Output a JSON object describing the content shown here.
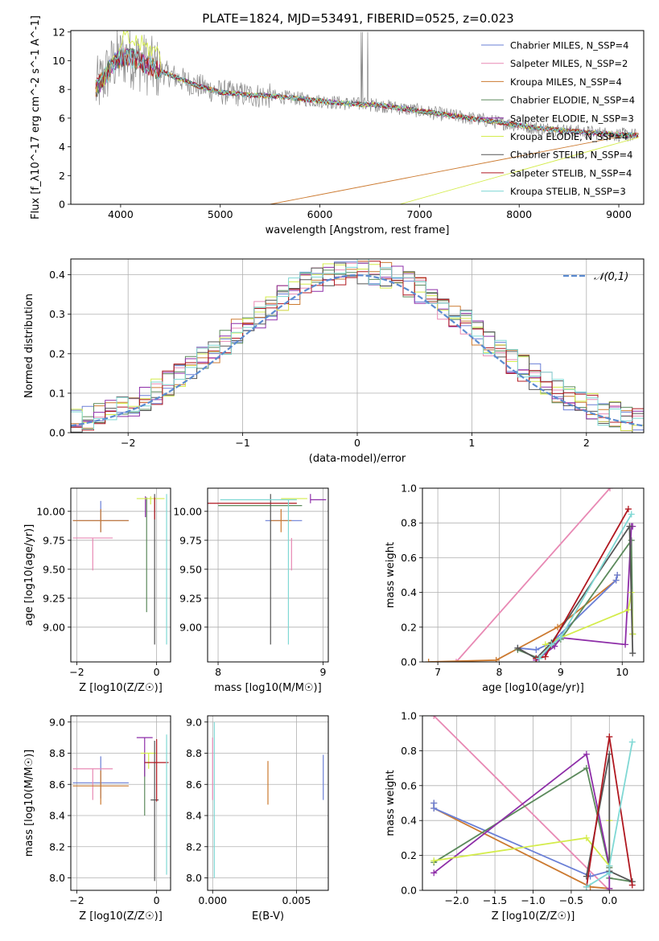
{
  "figure_title": "PLATE=1824, MJD=53491, FIBERID=0525, z=0.023",
  "colors": {
    "chabrier_miles": "#6a7fd6",
    "salpeter_miles": "#e889b4",
    "kroupa_miles": "#cc7a30",
    "chabrier_elodie": "#5c8a5c",
    "salpeter_elodie": "#8e2ea8",
    "kroupa_elodie": "#d4ec4c",
    "chabrier_stelib": "#555555",
    "salpeter_stelib": "#b01820",
    "kroupa_stelib": "#7fd8d4"
  },
  "chart_data": [
    {
      "id": "spectrum",
      "type": "line",
      "title": "PLATE=1824, MJD=53491, FIBERID=0525, z=0.023",
      "xlabel": "wavelength [Angstrom, rest frame]",
      "ylabel": "Flux [f_λ10^-17 erg cm^-2 s^-1 A^-1]",
      "xlim": [
        3500,
        9250
      ],
      "ylim": [
        0,
        12.1
      ],
      "xticks": [
        4000,
        5000,
        6000,
        7000,
        8000,
        9000
      ],
      "yticks": [
        0,
        2,
        4,
        6,
        8,
        10,
        12
      ],
      "legend_position": "top-right",
      "grid": false,
      "continuum": {
        "x": [
          3750,
          3850,
          3950,
          4050,
          4150,
          4300,
          4500,
          4750,
          5000,
          5300,
          5600,
          6000,
          6300,
          6600,
          7000,
          7300,
          7600,
          7900,
          8200,
          8500,
          8800,
          9000,
          9200
        ],
        "y": [
          8.0,
          9.0,
          10.0,
          10.3,
          10.1,
          9.6,
          9.0,
          8.3,
          7.8,
          7.6,
          7.5,
          7.2,
          7.0,
          6.9,
          6.5,
          6.2,
          5.9,
          5.6,
          5.3,
          5.1,
          4.95,
          4.85,
          4.8
        ]
      },
      "legend": [
        "Chabrier MILES, N_SSP=4",
        "Salpeter MILES, N_SSP=2",
        "Kroupa MILES, N_SSP=4",
        "Chabrier ELODIE, N_SSP=4",
        "Salpeter ELODIE, N_SSP=3",
        "Kroupa ELODIE, N_SSP=4",
        "Chabrier STELIB, N_SSP=4",
        "Salpeter STELIB, N_SSP=4",
        "Kroupa STELIB, N_SSP=3"
      ]
    },
    {
      "id": "residuals",
      "type": "line",
      "xlabel": "(data-model)/error",
      "ylabel": "Normed distribution",
      "xlim": [
        -2.5,
        2.5
      ],
      "ylim": [
        0,
        0.44
      ],
      "xticks": [
        -2,
        -1,
        0,
        1,
        2
      ],
      "yticks": [
        0.0,
        0.1,
        0.2,
        0.3,
        0.4
      ],
      "grid": true,
      "legend_position": "top-right",
      "reference_label": "𝒩(0,1)",
      "bin_width": 0.1
    },
    {
      "id": "age_vs_Z",
      "type": "scatter",
      "xlabel": "Z [log10(Z/Z☉)]",
      "ylabel": "age [log10(age/yr)]",
      "xlim": [
        -2.15,
        0.35
      ],
      "ylim": [
        8.7,
        10.2
      ],
      "xticks": [
        -2,
        0
      ],
      "yticks": [
        9.0,
        9.25,
        9.5,
        9.75,
        10.0
      ],
      "grid": true,
      "points": [
        {
          "s": "chabrier_miles",
          "x": -1.4,
          "xerr": [
            0.7,
            0.7
          ],
          "y": 9.92,
          "yerr": [
            0.1,
            0.17
          ]
        },
        {
          "s": "salpeter_miles",
          "x": -1.6,
          "xerr": [
            0.5,
            0.5
          ],
          "y": 9.77,
          "yerr": [
            0.28,
            0.0
          ]
        },
        {
          "s": "kroupa_miles",
          "x": -1.4,
          "xerr": [
            0.7,
            0.7
          ],
          "y": 9.92,
          "yerr": [
            0.1,
            0.1
          ]
        },
        {
          "s": "chabrier_elodie",
          "x": -0.25,
          "xerr": [
            0.0,
            0.0
          ],
          "y": 9.95,
          "yerr": [
            0.82,
            0.17
          ]
        },
        {
          "s": "salpeter_elodie",
          "x": -0.28,
          "xerr": [
            0.0,
            0.0
          ],
          "y": 10.05,
          "yerr": [
            0.1,
            0.08
          ]
        },
        {
          "s": "kroupa_elodie",
          "x": -0.15,
          "xerr": [
            0.35,
            0.35
          ],
          "y": 10.11,
          "yerr": [
            0.05,
            0.02
          ]
        },
        {
          "s": "chabrier_stelib",
          "x": -0.05,
          "xerr": [
            0.0,
            0.0
          ],
          "y": 10.1,
          "yerr": [
            1.25,
            0.05
          ]
        },
        {
          "s": "salpeter_stelib",
          "x": -0.05,
          "xerr": [
            0.0,
            0.0
          ],
          "y": 10.05,
          "yerr": [
            0.12,
            0.07
          ]
        },
        {
          "s": "kroupa_stelib",
          "x": 0.25,
          "xerr": [
            0.0,
            0.0
          ],
          "y": 10.1,
          "yerr": [
            1.25,
            0.05
          ]
        }
      ]
    },
    {
      "id": "age_vs_mass",
      "type": "scatter",
      "xlabel": "mass [log10(M/M☉)]",
      "ylabel": "",
      "xlim": [
        7.9,
        9.05
      ],
      "ylim": [
        8.7,
        10.2
      ],
      "xticks": [
        8,
        9
      ],
      "yticks": [
        9.0,
        9.25,
        9.5,
        9.75,
        10.0
      ],
      "grid": true,
      "points": [
        {
          "s": "chabrier_miles",
          "x": 8.6,
          "xerr": [
            0.15,
            0.2
          ],
          "y": 9.92,
          "yerr": [
            0.0,
            0.0
          ]
        },
        {
          "s": "salpeter_miles",
          "x": 8.7,
          "xerr": [
            0.0,
            0.0
          ],
          "y": 9.77,
          "yerr": [
            0.28,
            0.0
          ]
        },
        {
          "s": "kroupa_miles",
          "x": 8.6,
          "xerr": [
            0.1,
            0.1
          ],
          "y": 9.92,
          "yerr": [
            0.1,
            0.1
          ]
        },
        {
          "s": "chabrier_elodie",
          "x": 8.6,
          "xerr": [
            0.6,
            0.2
          ],
          "y": 10.05,
          "yerr": [
            0.0,
            0.0
          ]
        },
        {
          "s": "salpeter_elodie",
          "x": 8.88,
          "xerr": [
            0.0,
            0.15
          ],
          "y": 10.1,
          "yerr": [
            0.03,
            0.05
          ]
        },
        {
          "s": "kroupa_elodie",
          "x": 8.75,
          "xerr": [
            0.15,
            0.1
          ],
          "y": 10.11,
          "yerr": [
            0.0,
            0.0
          ]
        },
        {
          "s": "chabrier_stelib",
          "x": 8.5,
          "xerr": [
            0.0,
            0.0
          ],
          "y": 10.1,
          "yerr": [
            1.25,
            0.05
          ]
        },
        {
          "s": "salpeter_stelib",
          "x": 8.6,
          "xerr": [
            0.7,
            0.15
          ],
          "y": 10.07,
          "yerr": [
            0.0,
            0.0
          ]
        },
        {
          "s": "kroupa_stelib",
          "x": 8.67,
          "xerr": [
            0.65,
            0.08
          ],
          "y": 10.1,
          "yerr": [
            1.25,
            0.0
          ]
        }
      ]
    },
    {
      "id": "weight_vs_age",
      "type": "line",
      "xlabel": "age [log10(age/yr)]",
      "ylabel": "mass weight",
      "xlim": [
        6.75,
        10.35
      ],
      "ylim": [
        0,
        1.0
      ],
      "xticks": [
        7,
        8,
        9,
        10
      ],
      "yticks": [
        0.0,
        0.2,
        0.4,
        0.6,
        0.8,
        1.0
      ],
      "grid": true,
      "series": [
        {
          "s": "salpeter_miles",
          "x": [
            7.3,
            9.8
          ],
          "y": [
            0.0,
            1.0
          ]
        },
        {
          "s": "kroupa_miles",
          "x": [
            6.85,
            7.95,
            8.95,
            9.9,
            9.92
          ],
          "y": [
            0.0,
            0.01,
            0.2,
            0.47,
            0.5
          ]
        },
        {
          "s": "chabrier_miles",
          "x": [
            8.3,
            8.6,
            8.85,
            9.9,
            9.92
          ],
          "y": [
            0.08,
            0.07,
            0.11,
            0.47,
            0.5
          ]
        },
        {
          "s": "chabrier_elodie",
          "x": [
            8.3,
            8.65,
            9.0,
            10.15,
            10.17
          ],
          "y": [
            0.07,
            0.02,
            0.13,
            0.7,
            0.16
          ]
        },
        {
          "s": "salpeter_elodie",
          "x": [
            8.6,
            8.9,
            9.0,
            10.05,
            10.15,
            10.17
          ],
          "y": [
            0.01,
            0.09,
            0.14,
            0.1,
            0.78,
            0.78
          ]
        },
        {
          "s": "kroupa_elodie",
          "x": [
            8.75,
            9.0,
            10.1,
            10.15,
            10.17
          ],
          "y": [
            0.1,
            0.14,
            0.3,
            0.4,
            0.16
          ]
        },
        {
          "s": "chabrier_stelib",
          "x": [
            8.3,
            8.6,
            8.85,
            10.12,
            10.17
          ],
          "y": [
            0.08,
            0.02,
            0.11,
            0.78,
            0.05
          ]
        },
        {
          "s": "salpeter_stelib",
          "x": [
            8.6,
            8.75,
            8.85,
            10.1
          ],
          "y": [
            0.02,
            0.03,
            0.1,
            0.88
          ]
        },
        {
          "s": "kroupa_stelib",
          "x": [
            8.65,
            8.85,
            9.0,
            10.15
          ],
          "y": [
            0.02,
            0.1,
            0.14,
            0.85
          ]
        }
      ]
    },
    {
      "id": "mass_vs_Z",
      "type": "scatter",
      "xlabel": "Z [log10(Z/Z☉)]",
      "ylabel": "mass [log10(M/M☉)]",
      "xlim": [
        -2.15,
        0.35
      ],
      "ylim": [
        7.92,
        9.04
      ],
      "xticks": [
        -2,
        0
      ],
      "yticks": [
        8.0,
        8.2,
        8.4,
        8.6,
        8.8,
        9.0
      ],
      "grid": true,
      "points": [
        {
          "s": "chabrier_miles",
          "x": -1.4,
          "xerr": [
            0.7,
            0.7
          ],
          "y": 8.61,
          "yerr": [
            0.1,
            0.17
          ]
        },
        {
          "s": "salpeter_miles",
          "x": -1.6,
          "xerr": [
            0.5,
            0.5
          ],
          "y": 8.7,
          "yerr": [
            0.2,
            0.0
          ]
        },
        {
          "s": "kroupa_miles",
          "x": -1.4,
          "xerr": [
            0.7,
            0.7
          ],
          "y": 8.59,
          "yerr": [
            0.12,
            0.1
          ]
        },
        {
          "s": "chabrier_elodie",
          "x": -0.3,
          "xerr": [
            0.0,
            0.0
          ],
          "y": 8.75,
          "yerr": [
            0.35,
            0.05
          ]
        },
        {
          "s": "salpeter_elodie",
          "x": -0.3,
          "xerr": [
            0.2,
            0.2
          ],
          "y": 8.9,
          "yerr": [
            0.25,
            0.0
          ]
        },
        {
          "s": "kroupa_elodie",
          "x": -0.2,
          "xerr": [
            0.2,
            0.2
          ],
          "y": 8.8,
          "yerr": [
            0.1,
            0.0
          ]
        },
        {
          "s": "chabrier_stelib",
          "x": -0.05,
          "xerr": [
            0.1,
            0.1
          ],
          "y": 8.5,
          "yerr": [
            0.52,
            0.38
          ]
        },
        {
          "s": "salpeter_stelib",
          "x": 0.0,
          "xerr": [
            0.3,
            0.3
          ],
          "y": 8.74,
          "yerr": [
            0.25,
            0.15
          ]
        },
        {
          "s": "kroupa_stelib",
          "x": 0.25,
          "xerr": [
            0.0,
            0.0
          ],
          "y": 8.67,
          "yerr": [
            0.65,
            0.25
          ]
        }
      ]
    },
    {
      "id": "mass_vs_ebv",
      "type": "scatter",
      "xlabel": "E(B-V)",
      "ylabel": "",
      "xlim": [
        -0.0003,
        0.0069
      ],
      "ylim": [
        7.92,
        9.04
      ],
      "xticks": [
        0.0,
        0.005
      ],
      "xtick_labels": [
        "0.000",
        "0.005"
      ],
      "yticks": [
        8.0,
        8.2,
        8.4,
        8.6,
        8.8,
        9.0
      ],
      "grid": true,
      "points": [
        {
          "s": "chabrier_miles",
          "x": 0.0066,
          "xerr": [
            0,
            0
          ],
          "y": 8.64,
          "yerr": [
            0.14,
            0.15
          ]
        },
        {
          "s": "kroupa_miles",
          "x": 0.0033,
          "xerr": [
            0,
            0
          ],
          "y": 8.61,
          "yerr": [
            0.14,
            0.14
          ]
        },
        {
          "s": "salpeter_miles",
          "x": 0.0,
          "xerr": [
            0,
            0
          ],
          "y": 8.7,
          "yerr": [
            0.2,
            0.2
          ]
        },
        {
          "s": "kroupa_stelib",
          "x": 0.0001,
          "xerr": [
            0,
            0
          ],
          "y": 8.5,
          "yerr": [
            0.5,
            0.5
          ]
        }
      ]
    },
    {
      "id": "weight_vs_Z",
      "type": "line",
      "xlabel": "Z [log10(Z/Z☉)]",
      "ylabel": "mass weight",
      "xlim": [
        -2.45,
        0.45
      ],
      "ylim": [
        0,
        1.0
      ],
      "xticks": [
        -2.0,
        -1.5,
        -1.0,
        -0.5,
        0.0
      ],
      "xtick_labels": [
        "−2.0",
        "−1.5",
        "−1.0",
        "−0.5",
        "0.0"
      ],
      "yticks": [
        0.0,
        0.2,
        0.4,
        0.6,
        0.8,
        1.0
      ],
      "grid": true,
      "series": [
        {
          "s": "salpeter_miles",
          "x": [
            -2.3,
            0.0
          ],
          "y": [
            1.0,
            0.0
          ]
        },
        {
          "s": "kroupa_miles",
          "x": [
            -2.3,
            -2.3,
            -0.25,
            0.0
          ],
          "y": [
            0.5,
            0.47,
            0.02,
            0.01
          ]
        },
        {
          "s": "chabrier_miles",
          "x": [
            -2.3,
            -2.3,
            -0.25,
            0.0
          ],
          "y": [
            0.5,
            0.47,
            0.08,
            0.11
          ]
        },
        {
          "s": "chabrier_elodie",
          "x": [
            -2.3,
            -0.3,
            0.0,
            0.0,
            0.3
          ],
          "y": [
            0.16,
            0.7,
            0.13,
            0.07,
            0.05
          ]
        },
        {
          "s": "salpeter_elodie",
          "x": [
            -2.3,
            -0.3,
            0.0,
            0.0
          ],
          "y": [
            0.1,
            0.78,
            0.14,
            0.01
          ]
        },
        {
          "s": "kroupa_elodie",
          "x": [
            -2.3,
            -0.3,
            0.0,
            0.0
          ],
          "y": [
            0.17,
            0.3,
            0.14,
            0.4
          ]
        },
        {
          "s": "chabrier_stelib",
          "x": [
            -0.3,
            0.0,
            0.0,
            0.3
          ],
          "y": [
            0.08,
            0.78,
            0.11,
            0.05
          ]
        },
        {
          "s": "salpeter_stelib",
          "x": [
            -0.3,
            0.0,
            0.3
          ],
          "y": [
            0.02,
            0.88,
            0.03
          ]
        },
        {
          "s": "kroupa_stelib",
          "x": [
            -0.3,
            0.0,
            0.0,
            0.3
          ],
          "y": [
            0.02,
            0.1,
            0.14,
            0.85
          ]
        }
      ]
    }
  ]
}
